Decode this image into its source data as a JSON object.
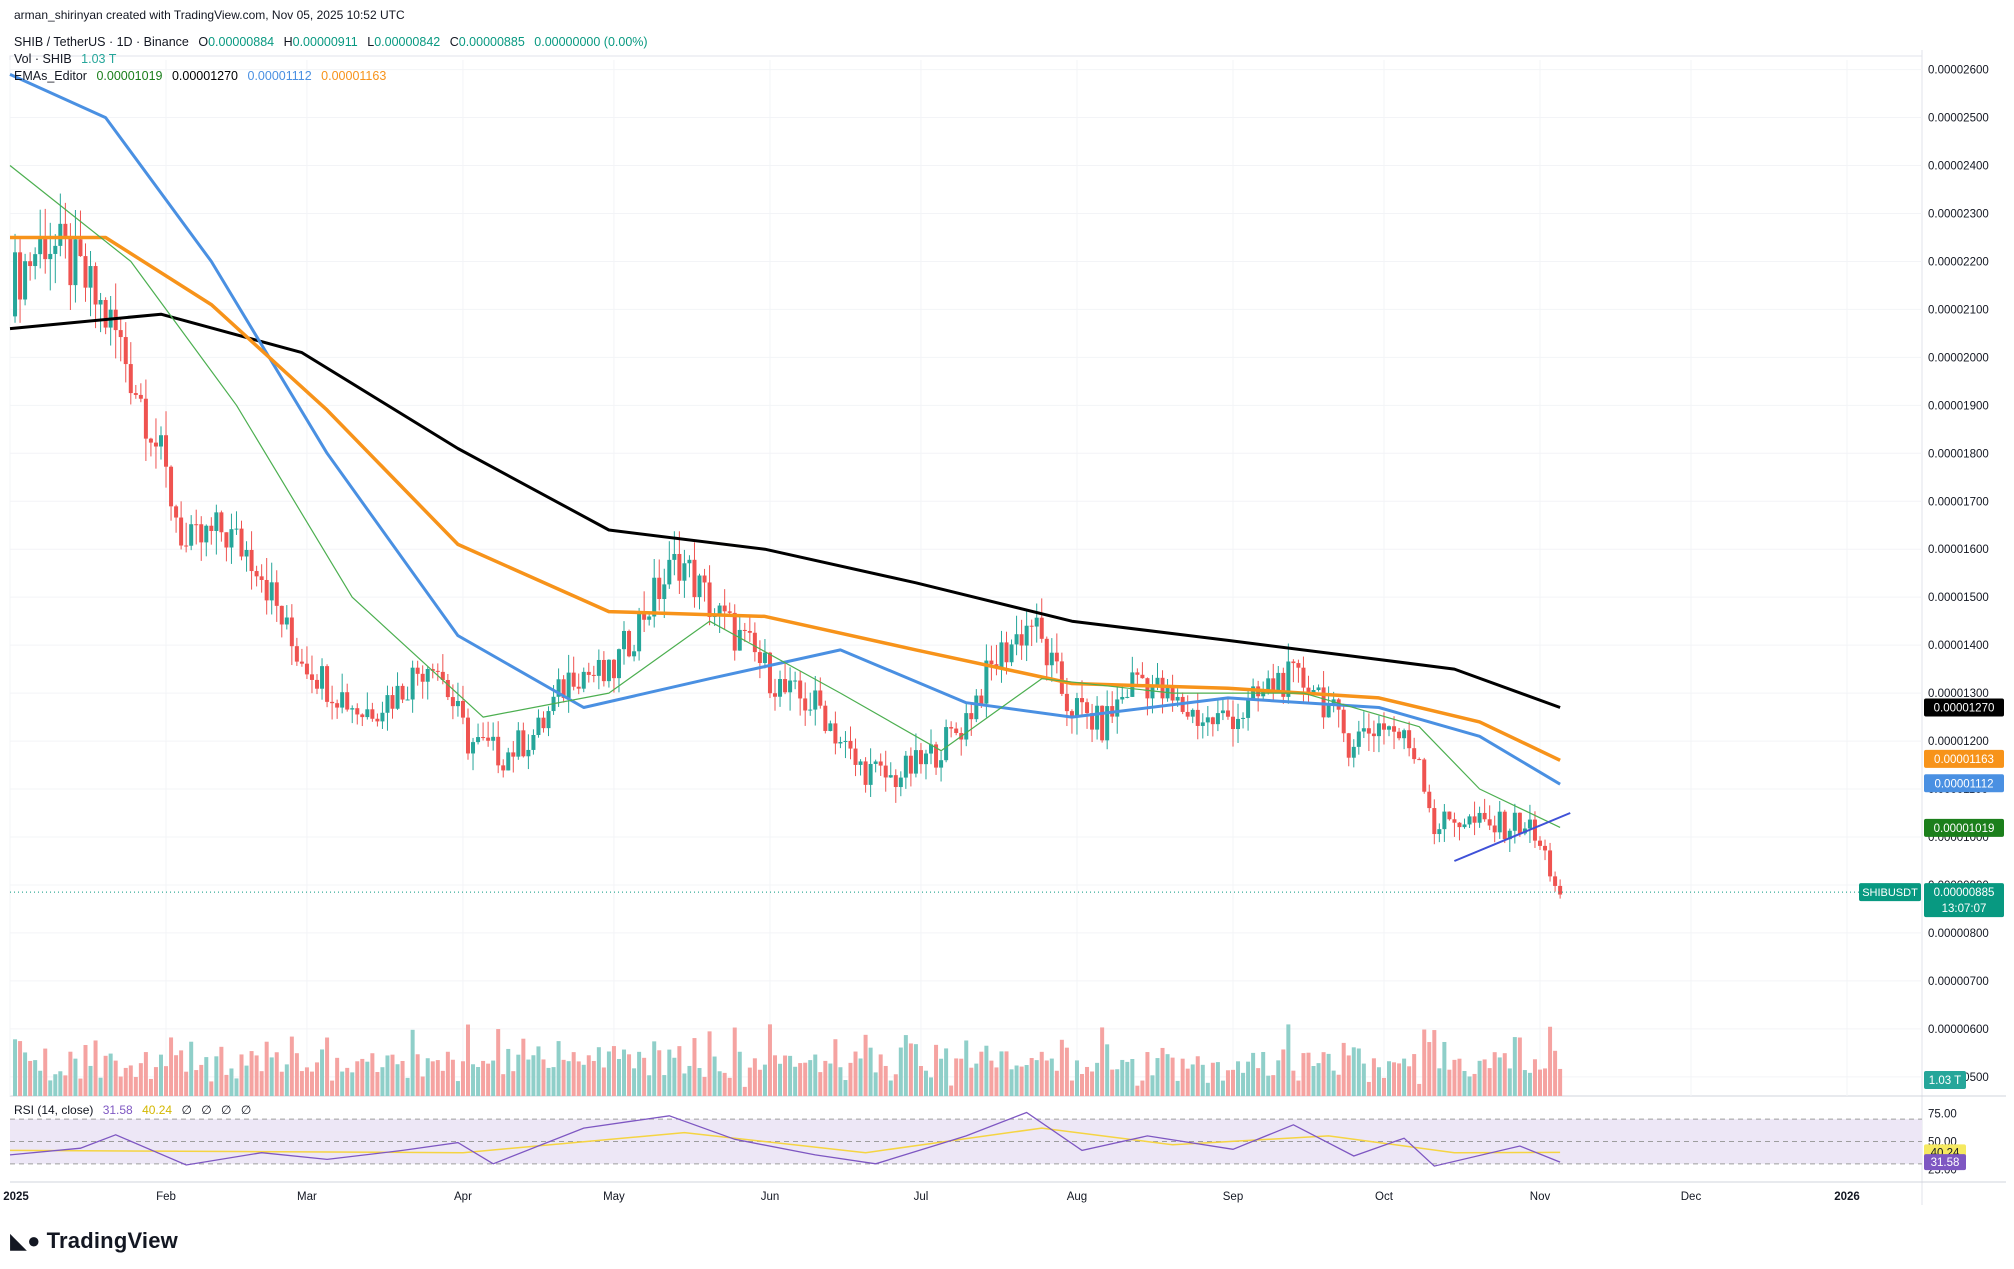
{
  "credit": "arman_shirinyan created with TradingView.com, Nov 05, 2025 10:52 UTC",
  "legend": {
    "symbol": "SHIB / TetherUS · 1D · Binance",
    "o_label": "O",
    "o_value": "0.00000884",
    "h_label": "H",
    "h_value": "0.00000911",
    "l_label": "L",
    "l_value": "0.00000842",
    "c_label": "C",
    "c_value": "0.00000885",
    "change": "0.00000000 (0.00%)",
    "vol_label": "Vol · SHIB",
    "vol_value": "1.03 T",
    "ema_label": "EMAs_Editor",
    "ema_values": [
      "0.00001019",
      "0.00001270",
      "0.00001112",
      "0.00001163"
    ]
  },
  "rsi_legend": {
    "label": "RSI (14, close)",
    "values": [
      "31.58",
      "40.24",
      "∅",
      "∅",
      "∅",
      "∅"
    ]
  },
  "price_axis_labels": [
    "0.00002600",
    "0.00002500",
    "0.00002400",
    "0.00002300",
    "0.00002200",
    "0.00002100",
    "0.00002000",
    "0.00001900",
    "0.00001800",
    "0.00001700",
    "0.00001600",
    "0.00001500",
    "0.00001400",
    "0.00001300",
    "0.00001200",
    "0.00001100",
    "0.00001000",
    "0.00000900",
    "0.00000800",
    "0.00000700",
    "0.00000600",
    "0.00000500"
  ],
  "rsi_axis_labels": [
    "75.00",
    "50.00",
    "25.00"
  ],
  "time_axis_labels": [
    "2025",
    "Feb",
    "Mar",
    "Apr",
    "May",
    "Jun",
    "Jul",
    "Aug",
    "Sep",
    "Oct",
    "Nov",
    "Dec",
    "2026"
  ],
  "price_tags": [
    {
      "text": "0.00001270",
      "color": "#000000"
    },
    {
      "text": "0.00001163",
      "color": "#f7931a"
    },
    {
      "text": "0.00001112",
      "color": "#4a90e2"
    },
    {
      "text": "0.00001019",
      "color": "#1b7f1b"
    }
  ],
  "last_price_tag": {
    "symbol": "SHIBUSDT",
    "price": "0.00000885",
    "countdown": "13:07:07",
    "color": "#089981"
  },
  "volume_tag": {
    "text": "1.03 T",
    "color": "#26a69a"
  },
  "rsi_tags": [
    {
      "text": "40.24",
      "color": "#f5e960"
    },
    {
      "text": "31.58",
      "color": "#7e57c2"
    }
  ],
  "branding": "TradingView",
  "colors": {
    "up": "#26a69a",
    "down": "#ef5350",
    "vol_up": "#8fcfc9",
    "vol_down": "#f5a3a1",
    "ema20": "#4caf50",
    "ema200": "#000000",
    "ema50": "#4a90e2",
    "ema100": "#f7931a",
    "rsi": "#7e57c2",
    "rsi_ma": "#f5d442",
    "rsi_band": "#ede7f6",
    "trendline": "#3f51d8"
  },
  "chart_data": {
    "type": "candlestick",
    "x_range": [
      "2025-01-01",
      "2026-01-01"
    ],
    "y_range": [
      4.6e-06,
      2.62e-05
    ],
    "series": [
      {
        "name": "SHIB/USDT",
        "kind": "ohlc",
        "weekly_close": [
          {
            "date": "2025-01-01",
            "v": 2.15e-05
          },
          {
            "date": "2025-01-08",
            "v": 2.25e-05
          },
          {
            "date": "2025-01-15",
            "v": 2.17e-05
          },
          {
            "date": "2025-01-22",
            "v": 2.05e-05
          },
          {
            "date": "2025-01-29",
            "v": 1.86e-05
          },
          {
            "date": "2025-02-05",
            "v": 1.6e-05
          },
          {
            "date": "2025-02-12",
            "v": 1.64e-05
          },
          {
            "date": "2025-02-19",
            "v": 1.58e-05
          },
          {
            "date": "2025-02-26",
            "v": 1.4e-05
          },
          {
            "date": "2025-03-05",
            "v": 1.32e-05
          },
          {
            "date": "2025-03-12",
            "v": 1.26e-05
          },
          {
            "date": "2025-03-19",
            "v": 1.3e-05
          },
          {
            "date": "2025-03-26",
            "v": 1.38e-05
          },
          {
            "date": "2025-04-02",
            "v": 1.2e-05
          },
          {
            "date": "2025-04-09",
            "v": 1.17e-05
          },
          {
            "date": "2025-04-16",
            "v": 1.22e-05
          },
          {
            "date": "2025-04-23",
            "v": 1.35e-05
          },
          {
            "date": "2025-04-30",
            "v": 1.33e-05
          },
          {
            "date": "2025-05-07",
            "v": 1.47e-05
          },
          {
            "date": "2025-05-14",
            "v": 1.58e-05
          },
          {
            "date": "2025-05-21",
            "v": 1.47e-05
          },
          {
            "date": "2025-05-28",
            "v": 1.39e-05
          },
          {
            "date": "2025-06-04",
            "v": 1.3e-05
          },
          {
            "date": "2025-06-11",
            "v": 1.27e-05
          },
          {
            "date": "2025-06-18",
            "v": 1.15e-05
          },
          {
            "date": "2025-06-25",
            "v": 1.12e-05
          },
          {
            "date": "2025-07-02",
            "v": 1.16e-05
          },
          {
            "date": "2025-07-09",
            "v": 1.23e-05
          },
          {
            "date": "2025-07-16",
            "v": 1.37e-05
          },
          {
            "date": "2025-07-23",
            "v": 1.45e-05
          },
          {
            "date": "2025-07-30",
            "v": 1.28e-05
          },
          {
            "date": "2025-08-06",
            "v": 1.23e-05
          },
          {
            "date": "2025-08-13",
            "v": 1.34e-05
          },
          {
            "date": "2025-08-20",
            "v": 1.28e-05
          },
          {
            "date": "2025-08-27",
            "v": 1.24e-05
          },
          {
            "date": "2025-09-03",
            "v": 1.26e-05
          },
          {
            "date": "2025-09-10",
            "v": 1.33e-05
          },
          {
            "date": "2025-09-17",
            "v": 1.32e-05
          },
          {
            "date": "2025-09-24",
            "v": 1.2e-05
          },
          {
            "date": "2025-10-01",
            "v": 1.24e-05
          },
          {
            "date": "2025-10-08",
            "v": 1.17e-05
          },
          {
            "date": "2025-10-11",
            "v": 1.02e-05
          },
          {
            "date": "2025-10-15",
            "v": 1.04e-05
          },
          {
            "date": "2025-10-22",
            "v": 1.02e-05
          },
          {
            "date": "2025-10-29",
            "v": 1.03e-05
          },
          {
            "date": "2025-11-02",
            "v": 9.6e-06
          },
          {
            "date": "2025-11-05",
            "v": 8.8e-06
          }
        ]
      },
      {
        "name": "EMA 200",
        "points": [
          {
            "date": "2025-01-01",
            "v": 2.06e-05
          },
          {
            "date": "2025-01-31",
            "v": 2.09e-05
          },
          {
            "date": "2025-02-28",
            "v": 2.01e-05
          },
          {
            "date": "2025-03-31",
            "v": 1.81e-05
          },
          {
            "date": "2025-04-30",
            "v": 1.64e-05
          },
          {
            "date": "2025-05-31",
            "v": 1.6e-05
          },
          {
            "date": "2025-06-30",
            "v": 1.53e-05
          },
          {
            "date": "2025-07-31",
            "v": 1.45e-05
          },
          {
            "date": "2025-08-31",
            "v": 1.41e-05
          },
          {
            "date": "2025-09-30",
            "v": 1.37e-05
          },
          {
            "date": "2025-10-15",
            "v": 1.35e-05
          },
          {
            "date": "2025-11-05",
            "v": 1.27e-05
          }
        ]
      },
      {
        "name": "EMA 100",
        "points": [
          {
            "date": "2025-01-01",
            "v": 2.25e-05
          },
          {
            "date": "2025-01-20",
            "v": 2.25e-05
          },
          {
            "date": "2025-02-10",
            "v": 2.11e-05
          },
          {
            "date": "2025-03-05",
            "v": 1.89e-05
          },
          {
            "date": "2025-03-31",
            "v": 1.61e-05
          },
          {
            "date": "2025-04-30",
            "v": 1.47e-05
          },
          {
            "date": "2025-05-31",
            "v": 1.46e-05
          },
          {
            "date": "2025-06-30",
            "v": 1.39e-05
          },
          {
            "date": "2025-07-31",
            "v": 1.32e-05
          },
          {
            "date": "2025-08-31",
            "v": 1.31e-05
          },
          {
            "date": "2025-09-30",
            "v": 1.29e-05
          },
          {
            "date": "2025-10-20",
            "v": 1.24e-05
          },
          {
            "date": "2025-11-05",
            "v": 1.16e-05
          }
        ]
      },
      {
        "name": "EMA 50",
        "points": [
          {
            "date": "2025-01-01",
            "v": 2.59e-05
          },
          {
            "date": "2025-01-20",
            "v": 2.5e-05
          },
          {
            "date": "2025-02-10",
            "v": 2.2e-05
          },
          {
            "date": "2025-03-05",
            "v": 1.8e-05
          },
          {
            "date": "2025-03-31",
            "v": 1.42e-05
          },
          {
            "date": "2025-04-25",
            "v": 1.27e-05
          },
          {
            "date": "2025-05-20",
            "v": 1.33e-05
          },
          {
            "date": "2025-06-15",
            "v": 1.39e-05
          },
          {
            "date": "2025-07-10",
            "v": 1.28e-05
          },
          {
            "date": "2025-07-31",
            "v": 1.25e-05
          },
          {
            "date": "2025-08-31",
            "v": 1.29e-05
          },
          {
            "date": "2025-09-30",
            "v": 1.27e-05
          },
          {
            "date": "2025-10-20",
            "v": 1.21e-05
          },
          {
            "date": "2025-11-05",
            "v": 1.11e-05
          }
        ]
      },
      {
        "name": "EMA 20",
        "points": [
          {
            "date": "2025-01-01",
            "v": 2.4e-05
          },
          {
            "date": "2025-01-25",
            "v": 2.2e-05
          },
          {
            "date": "2025-02-15",
            "v": 1.9e-05
          },
          {
            "date": "2025-03-10",
            "v": 1.5e-05
          },
          {
            "date": "2025-04-05",
            "v": 1.25e-05
          },
          {
            "date": "2025-04-30",
            "v": 1.3e-05
          },
          {
            "date": "2025-05-20",
            "v": 1.45e-05
          },
          {
            "date": "2025-06-15",
            "v": 1.3e-05
          },
          {
            "date": "2025-07-05",
            "v": 1.18e-05
          },
          {
            "date": "2025-07-25",
            "v": 1.33e-05
          },
          {
            "date": "2025-08-20",
            "v": 1.3e-05
          },
          {
            "date": "2025-09-15",
            "v": 1.3e-05
          },
          {
            "date": "2025-10-08",
            "v": 1.23e-05
          },
          {
            "date": "2025-10-20",
            "v": 1.1e-05
          },
          {
            "date": "2025-11-05",
            "v": 1.02e-05
          }
        ]
      },
      {
        "name": "Trendline",
        "points": [
          {
            "date": "2025-10-15",
            "v": 9.5e-06
          },
          {
            "date": "2025-11-07",
            "v": 1.05e-05
          }
        ]
      }
    ],
    "rsi": {
      "range": [
        20,
        80
      ],
      "bands": [
        30,
        50,
        70
      ],
      "points": [
        {
          "date": "2025-01-01",
          "v": 38
        },
        {
          "date": "2025-01-15",
          "v": 44
        },
        {
          "date": "2025-01-22",
          "v": 56
        },
        {
          "date": "2025-02-05",
          "v": 29
        },
        {
          "date": "2025-02-20",
          "v": 40
        },
        {
          "date": "2025-03-05",
          "v": 34
        },
        {
          "date": "2025-03-20",
          "v": 42
        },
        {
          "date": "2025-03-31",
          "v": 49
        },
        {
          "date": "2025-04-07",
          "v": 30
        },
        {
          "date": "2025-04-25",
          "v": 62
        },
        {
          "date": "2025-05-12",
          "v": 73
        },
        {
          "date": "2025-05-25",
          "v": 52
        },
        {
          "date": "2025-06-10",
          "v": 38
        },
        {
          "date": "2025-06-22",
          "v": 30
        },
        {
          "date": "2025-07-10",
          "v": 55
        },
        {
          "date": "2025-07-22",
          "v": 76
        },
        {
          "date": "2025-08-02",
          "v": 42
        },
        {
          "date": "2025-08-15",
          "v": 55
        },
        {
          "date": "2025-09-01",
          "v": 43
        },
        {
          "date": "2025-09-13",
          "v": 65
        },
        {
          "date": "2025-09-25",
          "v": 37
        },
        {
          "date": "2025-10-05",
          "v": 53
        },
        {
          "date": "2025-10-11",
          "v": 28
        },
        {
          "date": "2025-10-28",
          "v": 46
        },
        {
          "date": "2025-11-05",
          "v": 31.58
        }
      ],
      "ma_points": [
        {
          "date": "2025-01-01",
          "v": 42
        },
        {
          "date": "2025-02-15",
          "v": 41
        },
        {
          "date": "2025-04-01",
          "v": 40
        },
        {
          "date": "2025-05-15",
          "v": 58
        },
        {
          "date": "2025-06-20",
          "v": 40
        },
        {
          "date": "2025-07-25",
          "v": 62
        },
        {
          "date": "2025-08-20",
          "v": 47
        },
        {
          "date": "2025-09-20",
          "v": 55
        },
        {
          "date": "2025-10-15",
          "v": 40
        },
        {
          "date": "2025-11-05",
          "v": 40.24
        }
      ]
    }
  }
}
